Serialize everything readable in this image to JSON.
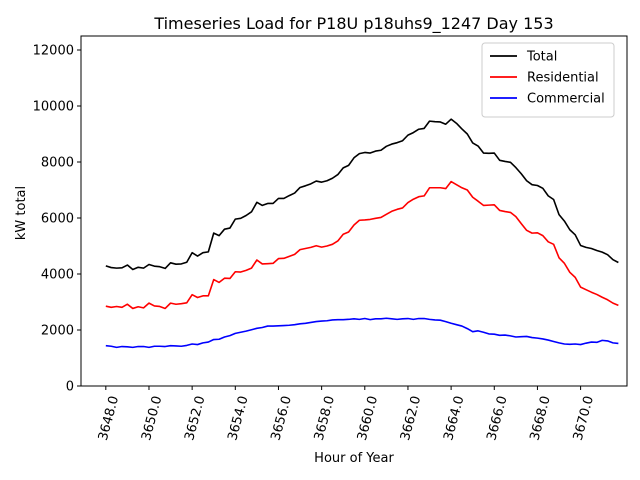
{
  "chart_data": {
    "type": "line",
    "title": "Timeseries Load for P18U p18uhs9_1247  Day 153",
    "xlabel": "Hour of Year",
    "ylabel": "kW total",
    "xlim": [
      3646.85,
      3672.15
    ],
    "ylim": [
      0,
      12500
    ],
    "xticks": [
      3648,
      3650,
      3652,
      3654,
      3656,
      3658,
      3660,
      3662,
      3664,
      3666,
      3668,
      3670
    ],
    "xtick_labels": [
      "3648.0",
      "3650.0",
      "3652.0",
      "3654.0",
      "3656.0",
      "3658.0",
      "3660.0",
      "3662.0",
      "3664.0",
      "3666.0",
      "3668.0",
      "3670.0"
    ],
    "yticks": [
      0,
      2000,
      4000,
      6000,
      8000,
      10000,
      12000
    ],
    "ytick_labels": [
      "0",
      "2000",
      "4000",
      "6000",
      "8000",
      "10000",
      "12000"
    ],
    "legend_position": "top-right",
    "x_start": 3648.0,
    "x_step": 0.25,
    "series": [
      {
        "name": "Total",
        "color": "#000000",
        "values": [
          4290,
          4230,
          4210,
          4220,
          4320,
          4160,
          4240,
          4210,
          4340,
          4280,
          4260,
          4200,
          4400,
          4350,
          4360,
          4420,
          4760,
          4640,
          4760,
          4790,
          5460,
          5370,
          5600,
          5640,
          5960,
          5990,
          6090,
          6220,
          6560,
          6450,
          6520,
          6520,
          6700,
          6700,
          6800,
          6890,
          7090,
          7150,
          7220,
          7320,
          7280,
          7330,
          7420,
          7550,
          7790,
          7880,
          8150,
          8300,
          8340,
          8320,
          8390,
          8420,
          8560,
          8640,
          8690,
          8760,
          8960,
          9050,
          9170,
          9200,
          9460,
          9440,
          9430,
          9350,
          9530,
          9380,
          9180,
          9000,
          8680,
          8570,
          8320,
          8310,
          8320,
          8060,
          8020,
          7990,
          7800,
          7580,
          7330,
          7190,
          7160,
          7060,
          6790,
          6660,
          6120,
          5890,
          5580,
          5400,
          5020,
          4950,
          4910,
          4840,
          4780,
          4690,
          4510,
          4410
        ]
      },
      {
        "name": "Residential",
        "color": "#ff0000",
        "values": [
          2850,
          2810,
          2840,
          2810,
          2920,
          2770,
          2830,
          2790,
          2960,
          2860,
          2840,
          2770,
          2960,
          2920,
          2940,
          2970,
          3260,
          3160,
          3220,
          3220,
          3800,
          3700,
          3850,
          3840,
          4080,
          4070,
          4130,
          4210,
          4500,
          4360,
          4370,
          4380,
          4550,
          4560,
          4630,
          4700,
          4870,
          4910,
          4950,
          5010,
          4960,
          5000,
          5060,
          5180,
          5420,
          5500,
          5750,
          5920,
          5930,
          5950,
          5990,
          6020,
          6130,
          6240,
          6310,
          6360,
          6550,
          6670,
          6760,
          6790,
          7080,
          7080,
          7080,
          7050,
          7300,
          7190,
          7080,
          7000,
          6740,
          6600,
          6450,
          6460,
          6470,
          6270,
          6230,
          6200,
          6050,
          5800,
          5560,
          5460,
          5470,
          5370,
          5150,
          5060,
          4580,
          4380,
          4060,
          3880,
          3530,
          3440,
          3350,
          3270,
          3170,
          3080,
          2960,
          2880
        ]
      },
      {
        "name": "Commercial",
        "color": "#0000ff",
        "values": [
          1440,
          1420,
          1380,
          1410,
          1400,
          1380,
          1410,
          1410,
          1380,
          1420,
          1420,
          1410,
          1440,
          1430,
          1420,
          1450,
          1500,
          1480,
          1540,
          1570,
          1660,
          1670,
          1750,
          1800,
          1880,
          1920,
          1960,
          2010,
          2060,
          2090,
          2140,
          2140,
          2150,
          2160,
          2170,
          2190,
          2220,
          2240,
          2270,
          2300,
          2320,
          2330,
          2360,
          2370,
          2370,
          2380,
          2400,
          2380,
          2410,
          2370,
          2400,
          2400,
          2420,
          2400,
          2380,
          2400,
          2410,
          2380,
          2410,
          2410,
          2380,
          2360,
          2350,
          2300,
          2240,
          2190,
          2140,
          2050,
          1940,
          1970,
          1920,
          1860,
          1850,
          1810,
          1820,
          1790,
          1750,
          1760,
          1770,
          1730,
          1710,
          1680,
          1640,
          1590,
          1540,
          1500,
          1490,
          1500,
          1480,
          1530,
          1570,
          1560,
          1630,
          1610,
          1540,
          1520
        ]
      }
    ]
  }
}
